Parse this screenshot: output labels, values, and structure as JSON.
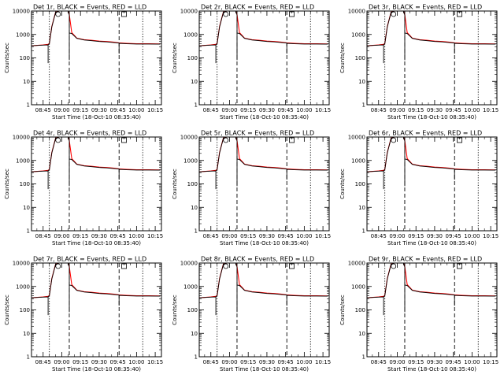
{
  "chart_data": {
    "type": "line",
    "layout": {
      "rows": 3,
      "cols": 3
    },
    "xlabel": "Start Time (18-Oct-10 08:35:40)",
    "ylabel": "Counts/sec",
    "yscale": "log",
    "ylim": [
      1,
      10000
    ],
    "y_ticks": [
      "1",
      "10",
      "100",
      "1000",
      "10000"
    ],
    "xlim": [
      "08:35:40",
      "10:20:00"
    ],
    "x_ticks": [
      "08:45",
      "09:00",
      "09:15",
      "09:30",
      "09:45",
      "10:00",
      "10:15"
    ],
    "vertical_lines": [
      {
        "x": "08:50",
        "style": "dotted"
      },
      {
        "x": "09:06",
        "style": "dashed"
      },
      {
        "x": "09:46",
        "style": "dashed"
      },
      {
        "x": "10:05",
        "style": "dotted"
      }
    ],
    "series_colors": {
      "events": "#000000",
      "lld": "#ff0000"
    },
    "panels": [
      {
        "title": "Det 1r, BLACK = Events, RED = LLD"
      },
      {
        "title": "Det 2r, BLACK = Events, RED = LLD"
      },
      {
        "title": "Det 3r, BLACK = Events, RED = LLD"
      },
      {
        "title": "Det 4r, BLACK = Events, RED = LLD"
      },
      {
        "title": "Det 5r, BLACK = Events, RED = LLD"
      },
      {
        "title": "Det 6r, BLACK = Events, RED = LLD"
      },
      {
        "title": "Det 7r, BLACK = Events, RED = LLD"
      },
      {
        "title": "Det 8r, BLACK = Events, RED = LLD"
      },
      {
        "title": "Det 9r, BLACK = Events, RED = LLD"
      }
    ],
    "lld_series": {
      "x": [
        "08:36",
        "08:45",
        "08:49",
        "08:50",
        "08:52",
        "08:55",
        "08:58",
        "09:00",
        "09:03",
        "09:05",
        "09:06",
        "09:08",
        "09:12",
        "09:18",
        "09:24",
        "09:30",
        "09:36",
        "09:42",
        "09:46",
        "09:52",
        "10:00",
        "10:10",
        "10:19"
      ],
      "y": [
        330,
        360,
        380,
        420,
        2200,
        9000,
        10000,
        10000,
        10000,
        10000,
        7000,
        1200,
        700,
        600,
        560,
        520,
        500,
        470,
        440,
        420,
        400,
        400,
        395
      ]
    },
    "events_series": {
      "x": [
        "08:36",
        "08:45",
        "08:49",
        "08:49",
        "08:49",
        "08:50",
        "08:52",
        "08:55",
        "08:58",
        "09:00",
        "09:03",
        "09:05",
        "09:06",
        "09:06",
        "09:06",
        "09:08",
        "09:12",
        "09:18",
        "09:24",
        "09:30",
        "09:36",
        "09:42",
        "09:46",
        "09:46",
        "09:46",
        "09:52",
        "10:00",
        "10:10",
        "10:19"
      ],
      "y": [
        330,
        350,
        360,
        60,
        360,
        410,
        2100,
        8800,
        10000,
        10000,
        10000,
        10000,
        6800,
        80,
        1150,
        1100,
        680,
        580,
        540,
        500,
        480,
        450,
        430,
        150,
        420,
        400,
        390,
        390,
        385
      ]
    },
    "small_markers": [
      {
        "x": "08:57",
        "shape": "circle"
      },
      {
        "x": "09:50",
        "shape": "square"
      }
    ]
  }
}
